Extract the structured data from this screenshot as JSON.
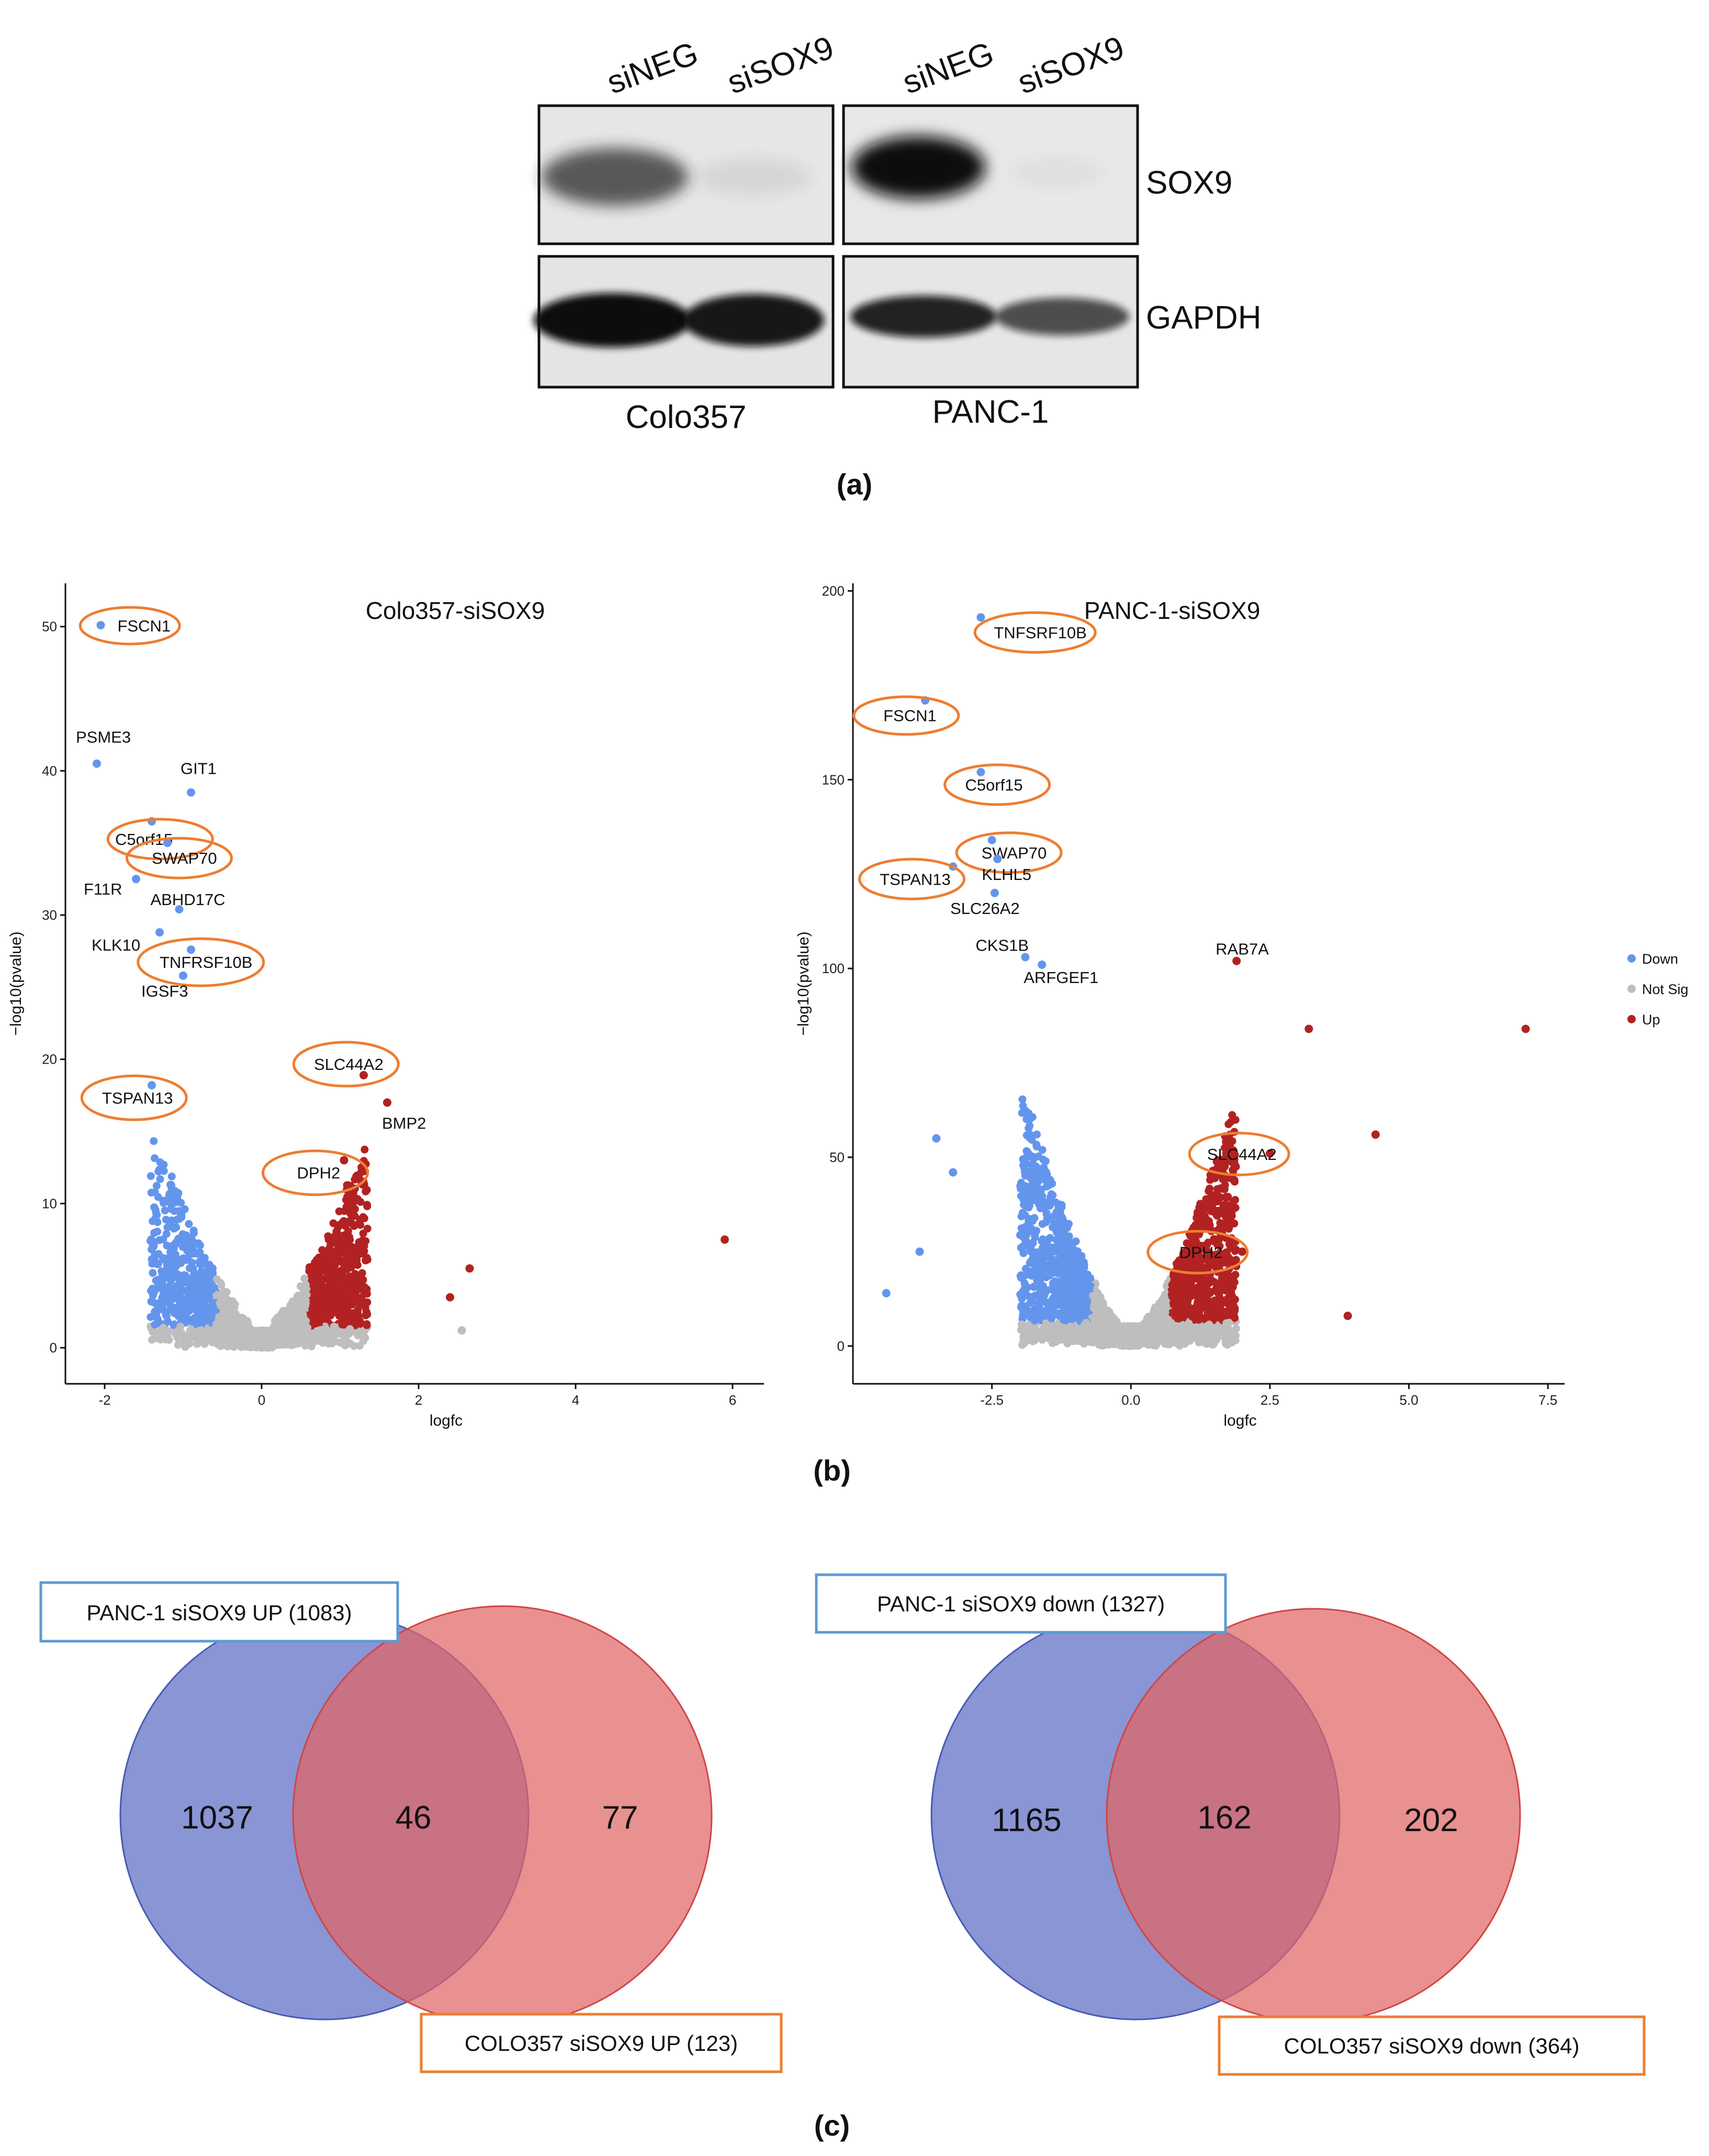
{
  "panel_labels": {
    "a": "(a)",
    "b": "(b)",
    "c": "(c)"
  },
  "western_blot": {
    "lanes": [
      "siNEG",
      "siSOX9",
      "siNEG",
      "siSOX9"
    ],
    "proteins": [
      "SOX9",
      "GAPDH"
    ],
    "cell_lines": [
      "Colo357",
      "PANC-1"
    ],
    "band_intensity": {
      "sox9": [
        0.72,
        0.08,
        1.0,
        0.04
      ],
      "gapdh": [
        1.0,
        0.95,
        0.9,
        0.7
      ]
    }
  },
  "chart_data": [
    {
      "type": "scatter",
      "title": "Colo357-siSOX9",
      "xlabel": "logfc",
      "ylabel": "−log10(pvalue)",
      "xlim": [
        -2.5,
        6.4
      ],
      "ylim": [
        -2.5,
        53
      ],
      "xticks": [
        -2,
        0,
        2,
        4,
        6
      ],
      "yticks": [
        0,
        10,
        20,
        30,
        40,
        50
      ],
      "labeled_points": [
        {
          "gene": "FSCN1",
          "x": -2.05,
          "y": 50.1,
          "group": "Down",
          "circled": true
        },
        {
          "gene": "PSME3",
          "x": -2.1,
          "y": 40.5,
          "group": "Down",
          "circled": false
        },
        {
          "gene": "GIT1",
          "x": -0.9,
          "y": 38.5,
          "group": "Down",
          "circled": false
        },
        {
          "gene": "C5orf15",
          "x": -1.4,
          "y": 36.5,
          "group": "Down",
          "circled": true
        },
        {
          "gene": "SWAP70",
          "x": -1.2,
          "y": 35.0,
          "group": "Down",
          "circled": true
        },
        {
          "gene": "F11R",
          "x": -1.6,
          "y": 32.5,
          "group": "Down",
          "circled": false
        },
        {
          "gene": "ABHD17C",
          "x": -1.05,
          "y": 30.4,
          "group": "Down",
          "circled": false
        },
        {
          "gene": "KLK10",
          "x": -1.3,
          "y": 28.8,
          "group": "Down",
          "circled": false
        },
        {
          "gene": "TNFRSF10B",
          "x": -0.9,
          "y": 27.6,
          "group": "Down",
          "circled": true
        },
        {
          "gene": "IGSF3",
          "x": -1.0,
          "y": 25.8,
          "group": "Down",
          "circled": false
        },
        {
          "gene": "TSPAN13",
          "x": -1.4,
          "y": 18.2,
          "group": "Down",
          "circled": true
        },
        {
          "gene": "SLC44A2",
          "x": 1.3,
          "y": 18.9,
          "group": "Up",
          "circled": true
        },
        {
          "gene": "BMP2",
          "x": 1.6,
          "y": 17.0,
          "group": "Up",
          "circled": false
        },
        {
          "gene": "DPH2",
          "x": 1.05,
          "y": 13.0,
          "group": "Up",
          "circled": true
        }
      ],
      "outliers": [
        {
          "x": 5.9,
          "y": 7.5,
          "group": "Up"
        },
        {
          "x": 2.4,
          "y": 3.5,
          "group": "Up"
        },
        {
          "x": 2.55,
          "y": 1.2,
          "group": "Not Sig"
        },
        {
          "x": 2.65,
          "y": 5.5,
          "group": "Up"
        }
      ]
    },
    {
      "type": "scatter",
      "title": "PANC-1-siSOX9",
      "xlabel": "logfc",
      "ylabel": "−log10(pvalue)",
      "xlim": [
        -5.0,
        7.8
      ],
      "ylim": [
        -10,
        202
      ],
      "xticks": [
        -2.5,
        0.0,
        2.5,
        5.0,
        7.5
      ],
      "yticks": [
        0,
        50,
        100,
        150,
        200
      ],
      "labeled_points": [
        {
          "gene": "TNFSRF10B",
          "x": -2.7,
          "y": 193,
          "group": "Down",
          "circled": true
        },
        {
          "gene": "FSCN1",
          "x": -3.7,
          "y": 171,
          "group": "Down",
          "circled": true
        },
        {
          "gene": "C5orf15",
          "x": -2.7,
          "y": 152,
          "group": "Down",
          "circled": true
        },
        {
          "gene": "SWAP70",
          "x": -2.5,
          "y": 134,
          "group": "Down",
          "circled": true
        },
        {
          "gene": "KLHL5",
          "x": -2.4,
          "y": 129,
          "group": "Down",
          "circled": false
        },
        {
          "gene": "TSPAN13",
          "x": -3.2,
          "y": 127,
          "group": "Down",
          "circled": true
        },
        {
          "gene": "SLC26A2",
          "x": -2.45,
          "y": 120,
          "group": "Down",
          "circled": false
        },
        {
          "gene": "CKS1B",
          "x": -1.9,
          "y": 103,
          "group": "Down",
          "circled": false
        },
        {
          "gene": "ARFGEF1",
          "x": -1.6,
          "y": 101,
          "group": "Down",
          "circled": false
        },
        {
          "gene": "RAB7A",
          "x": 1.9,
          "y": 102,
          "group": "Up",
          "circled": false
        },
        {
          "gene": "SLC44A2",
          "x": 2.5,
          "y": 51,
          "group": "Up",
          "circled": true
        },
        {
          "gene": "DPH2",
          "x": 2.0,
          "y": 25,
          "group": "Up",
          "circled": true
        }
      ],
      "outliers": [
        {
          "x": 7.1,
          "y": 84,
          "group": "Up"
        },
        {
          "x": 4.4,
          "y": 56,
          "group": "Up"
        },
        {
          "x": 3.2,
          "y": 84,
          "group": "Up"
        },
        {
          "x": 3.9,
          "y": 8,
          "group": "Up"
        },
        {
          "x": -4.4,
          "y": 14,
          "group": "Down"
        },
        {
          "x": -3.8,
          "y": 25,
          "group": "Down"
        },
        {
          "x": -3.5,
          "y": 55,
          "group": "Down"
        },
        {
          "x": -3.2,
          "y": 46,
          "group": "Down"
        }
      ],
      "legend": {
        "position": "right",
        "entries": [
          {
            "label": "Down",
            "color": "#6495ED"
          },
          {
            "label": "Not Sig",
            "color": "#BEBEBE"
          },
          {
            "label": "Up",
            "color": "#B22222"
          }
        ]
      }
    }
  ],
  "venn": [
    {
      "left_label": "PANC-1 siSOX9 UP (1083)",
      "right_label": "COLO357 siSOX9 UP (123)",
      "left_only": "1037",
      "overlap": "46",
      "right_only": "77"
    },
    {
      "left_label": "PANC-1 siSOX9 down (1327)",
      "right_label": "COLO357 siSOX9 down (364)",
      "left_only": "1165",
      "overlap": "162",
      "right_only": "202"
    }
  ],
  "colors": {
    "down": "#6495ED",
    "notsig": "#BEBEBE",
    "up": "#B22222",
    "circle": "#ED7D31",
    "venn_blue": "#5B6CC4",
    "venn_red": "#E06565",
    "venn_overlap": "#A8506F",
    "box_blue": "#5B9BD5",
    "box_orange": "#ED7D31"
  }
}
